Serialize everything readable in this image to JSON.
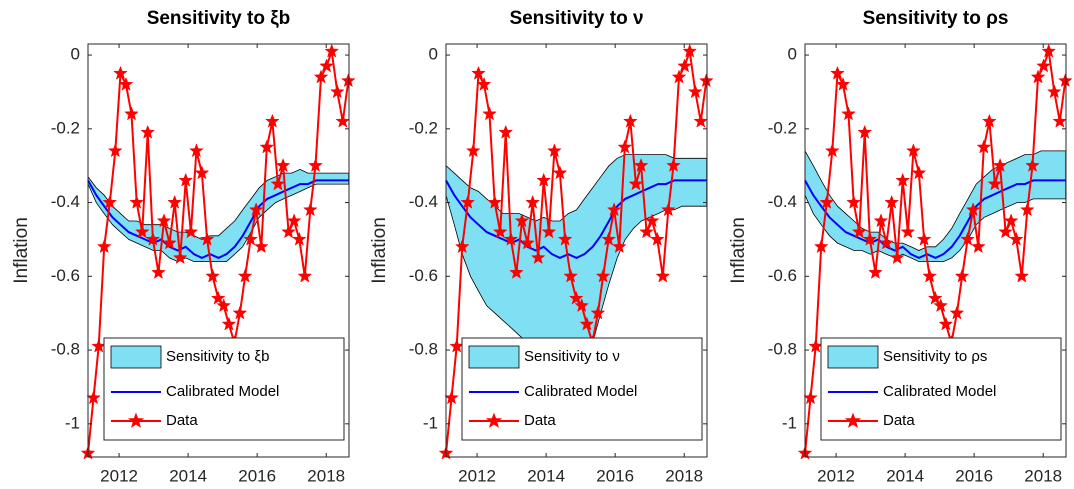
{
  "chart_data": [
    {
      "type": "line",
      "title": "Sensitivity to ξb",
      "ylabel": "Inflation",
      "xlim": [
        2011.1,
        2018.66
      ],
      "ylim": [
        -1.09,
        0.03
      ],
      "xticks": [
        2012,
        2014,
        2016,
        2018
      ],
      "yticks": [
        -1,
        -0.8,
        -0.6,
        -0.4,
        -0.2,
        0
      ],
      "band": {
        "name": "Sensitivity to ξb",
        "color": "#7fe0f4",
        "x": [
          2011.1,
          2011.34,
          2011.57,
          2011.81,
          2012.04,
          2012.28,
          2012.52,
          2012.75,
          2012.99,
          2013.22,
          2013.46,
          2013.7,
          2013.93,
          2014.17,
          2014.4,
          2014.64,
          2014.88,
          2015.11,
          2015.35,
          2015.58,
          2015.82,
          2016.06,
          2016.29,
          2016.53,
          2016.76,
          2017.0,
          2017.24,
          2017.47,
          2017.71,
          2017.94,
          2018.18,
          2018.42,
          2018.65
        ],
        "lower": [
          -0.35,
          -0.4,
          -0.43,
          -0.46,
          -0.48,
          -0.5,
          -0.51,
          -0.52,
          -0.53,
          -0.53,
          -0.55,
          -0.56,
          -0.55,
          -0.56,
          -0.56,
          -0.56,
          -0.56,
          -0.56,
          -0.54,
          -0.52,
          -0.48,
          -0.44,
          -0.42,
          -0.4,
          -0.39,
          -0.38,
          -0.37,
          -0.36,
          -0.35,
          -0.35,
          -0.35,
          -0.35,
          -0.35
        ],
        "upper": [
          -0.33,
          -0.36,
          -0.38,
          -0.41,
          -0.43,
          -0.45,
          -0.45,
          -0.46,
          -0.46,
          -0.46,
          -0.47,
          -0.48,
          -0.48,
          -0.49,
          -0.5,
          -0.49,
          -0.49,
          -0.47,
          -0.45,
          -0.42,
          -0.39,
          -0.36,
          -0.34,
          -0.33,
          -0.32,
          -0.32,
          -0.31,
          -0.32,
          -0.32,
          -0.32,
          -0.32,
          -0.32,
          -0.32
        ]
      },
      "series": [
        {
          "name": "Calibrated Model",
          "color": "#0000ff",
          "x": [
            2011.1,
            2011.34,
            2011.57,
            2011.81,
            2012.04,
            2012.28,
            2012.52,
            2012.75,
            2012.99,
            2013.22,
            2013.46,
            2013.7,
            2013.93,
            2014.17,
            2014.4,
            2014.64,
            2014.88,
            2015.11,
            2015.35,
            2015.58,
            2015.82,
            2016.06,
            2016.29,
            2016.53,
            2016.76,
            2017.0,
            2017.24,
            2017.47,
            2017.71,
            2017.94,
            2018.18,
            2018.42,
            2018.65
          ],
          "values": [
            -0.34,
            -0.38,
            -0.41,
            -0.44,
            -0.46,
            -0.48,
            -0.49,
            -0.5,
            -0.51,
            -0.5,
            -0.52,
            -0.53,
            -0.52,
            -0.54,
            -0.55,
            -0.54,
            -0.55,
            -0.54,
            -0.52,
            -0.49,
            -0.45,
            -0.41,
            -0.39,
            -0.38,
            -0.37,
            -0.36,
            -0.35,
            -0.35,
            -0.34,
            -0.34,
            -0.34,
            -0.34,
            -0.34
          ]
        },
        {
          "name": "Data",
          "color": "#ff0000",
          "x": [
            2011.1,
            2011.26,
            2011.41,
            2011.57,
            2011.73,
            2011.89,
            2012.04,
            2012.2,
            2012.36,
            2012.51,
            2012.67,
            2012.83,
            2012.98,
            2013.14,
            2013.3,
            2013.46,
            2013.61,
            2013.77,
            2013.93,
            2014.08,
            2014.24,
            2014.4,
            2014.55,
            2014.71,
            2014.87,
            2015.03,
            2015.18,
            2015.34,
            2015.5,
            2015.65,
            2015.81,
            2015.97,
            2016.12,
            2016.28,
            2016.44,
            2016.6,
            2016.75,
            2016.91,
            2017.07,
            2017.22,
            2017.38,
            2017.54,
            2017.69,
            2017.85,
            2018.01,
            2018.16,
            2018.32,
            2018.48,
            2018.64
          ],
          "values": [
            -1.08,
            -0.93,
            -0.79,
            -0.52,
            -0.4,
            -0.26,
            -0.05,
            -0.08,
            -0.16,
            -0.4,
            -0.48,
            -0.21,
            -0.5,
            -0.59,
            -0.45,
            -0.51,
            -0.4,
            -0.55,
            -0.34,
            -0.48,
            -0.26,
            -0.32,
            -0.5,
            -0.6,
            -0.66,
            -0.68,
            -0.73,
            -0.78,
            -0.7,
            -0.6,
            -0.5,
            -0.42,
            -0.52,
            -0.25,
            -0.18,
            -0.35,
            -0.3,
            -0.48,
            -0.45,
            -0.5,
            -0.6,
            -0.42,
            -0.3,
            -0.06,
            -0.03,
            0.01,
            -0.1,
            -0.18,
            -0.07
          ]
        }
      ]
    },
    {
      "type": "line",
      "title": "Sensitivity to ν",
      "ylabel": "Inflation",
      "xlim": [
        2011.1,
        2018.66
      ],
      "ylim": [
        -1.09,
        0.03
      ],
      "xticks": [
        2012,
        2014,
        2016,
        2018
      ],
      "yticks": [
        -1,
        -0.8,
        -0.6,
        -0.4,
        -0.2,
        0
      ],
      "band": {
        "name": "Sensitivity to ν",
        "color": "#7fe0f4",
        "x": [
          2011.1,
          2011.34,
          2011.57,
          2011.81,
          2012.04,
          2012.28,
          2012.52,
          2012.75,
          2012.99,
          2013.22,
          2013.46,
          2013.7,
          2013.93,
          2014.17,
          2014.4,
          2014.64,
          2014.88,
          2015.11,
          2015.35,
          2015.58,
          2015.82,
          2016.06,
          2016.29,
          2016.53,
          2016.76,
          2017.0,
          2017.24,
          2017.47,
          2017.71,
          2017.94,
          2018.18,
          2018.42,
          2018.65
        ],
        "lower": [
          -0.38,
          -0.46,
          -0.54,
          -0.6,
          -0.64,
          -0.68,
          -0.7,
          -0.72,
          -0.74,
          -0.76,
          -0.78,
          -0.8,
          -0.81,
          -0.82,
          -0.83,
          -0.84,
          -0.84,
          -0.82,
          -0.78,
          -0.7,
          -0.62,
          -0.55,
          -0.5,
          -0.47,
          -0.45,
          -0.44,
          -0.43,
          -0.42,
          -0.42,
          -0.41,
          -0.41,
          -0.41,
          -0.41
        ],
        "upper": [
          -0.3,
          -0.32,
          -0.34,
          -0.36,
          -0.37,
          -0.39,
          -0.41,
          -0.43,
          -0.43,
          -0.43,
          -0.44,
          -0.45,
          -0.44,
          -0.45,
          -0.45,
          -0.43,
          -0.42,
          -0.39,
          -0.36,
          -0.33,
          -0.3,
          -0.28,
          -0.27,
          -0.27,
          -0.27,
          -0.27,
          -0.27,
          -0.27,
          -0.28,
          -0.28,
          -0.28,
          -0.28,
          -0.28
        ]
      },
      "series": [
        {
          "name": "Calibrated Model",
          "color": "#0000ff",
          "x": [
            2011.1,
            2011.34,
            2011.57,
            2011.81,
            2012.04,
            2012.28,
            2012.52,
            2012.75,
            2012.99,
            2013.22,
            2013.46,
            2013.7,
            2013.93,
            2014.17,
            2014.4,
            2014.64,
            2014.88,
            2015.11,
            2015.35,
            2015.58,
            2015.82,
            2016.06,
            2016.29,
            2016.53,
            2016.76,
            2017.0,
            2017.24,
            2017.47,
            2017.71,
            2017.94,
            2018.18,
            2018.42,
            2018.65
          ],
          "values": [
            -0.34,
            -0.38,
            -0.41,
            -0.44,
            -0.46,
            -0.48,
            -0.49,
            -0.5,
            -0.51,
            -0.5,
            -0.52,
            -0.53,
            -0.52,
            -0.54,
            -0.55,
            -0.54,
            -0.55,
            -0.54,
            -0.52,
            -0.49,
            -0.45,
            -0.41,
            -0.39,
            -0.38,
            -0.37,
            -0.36,
            -0.35,
            -0.35,
            -0.34,
            -0.34,
            -0.34,
            -0.34,
            -0.34
          ]
        },
        {
          "name": "Data",
          "color": "#ff0000",
          "x": [
            2011.1,
            2011.26,
            2011.41,
            2011.57,
            2011.73,
            2011.89,
            2012.04,
            2012.2,
            2012.36,
            2012.51,
            2012.67,
            2012.83,
            2012.98,
            2013.14,
            2013.3,
            2013.46,
            2013.61,
            2013.77,
            2013.93,
            2014.08,
            2014.24,
            2014.4,
            2014.55,
            2014.71,
            2014.87,
            2015.03,
            2015.18,
            2015.34,
            2015.5,
            2015.65,
            2015.81,
            2015.97,
            2016.12,
            2016.28,
            2016.44,
            2016.6,
            2016.75,
            2016.91,
            2017.07,
            2017.22,
            2017.38,
            2017.54,
            2017.69,
            2017.85,
            2018.01,
            2018.16,
            2018.32,
            2018.48,
            2018.64
          ],
          "values": [
            -1.08,
            -0.93,
            -0.79,
            -0.52,
            -0.4,
            -0.26,
            -0.05,
            -0.08,
            -0.16,
            -0.4,
            -0.48,
            -0.21,
            -0.5,
            -0.59,
            -0.45,
            -0.51,
            -0.4,
            -0.55,
            -0.34,
            -0.48,
            -0.26,
            -0.32,
            -0.5,
            -0.6,
            -0.66,
            -0.68,
            -0.73,
            -0.78,
            -0.7,
            -0.6,
            -0.5,
            -0.42,
            -0.52,
            -0.25,
            -0.18,
            -0.35,
            -0.3,
            -0.48,
            -0.45,
            -0.5,
            -0.6,
            -0.42,
            -0.3,
            -0.06,
            -0.03,
            0.01,
            -0.1,
            -0.18,
            -0.07
          ]
        }
      ]
    },
    {
      "type": "line",
      "title": "Sensitivity to ρs",
      "ylabel": "Inflation",
      "xlim": [
        2011.1,
        2018.66
      ],
      "ylim": [
        -1.09,
        0.03
      ],
      "xticks": [
        2012,
        2014,
        2016,
        2018
      ],
      "yticks": [
        -1,
        -0.8,
        -0.6,
        -0.4,
        -0.2,
        0
      ],
      "band": {
        "name": "Sensitivity to ρs",
        "color": "#7fe0f4",
        "x": [
          2011.1,
          2011.34,
          2011.57,
          2011.81,
          2012.04,
          2012.28,
          2012.52,
          2012.75,
          2012.99,
          2013.22,
          2013.46,
          2013.7,
          2013.93,
          2014.17,
          2014.4,
          2014.64,
          2014.88,
          2015.11,
          2015.35,
          2015.58,
          2015.82,
          2016.06,
          2016.29,
          2016.53,
          2016.76,
          2017.0,
          2017.24,
          2017.47,
          2017.71,
          2017.94,
          2018.18,
          2018.42,
          2018.65
        ],
        "lower": [
          -0.38,
          -0.43,
          -0.46,
          -0.49,
          -0.51,
          -0.52,
          -0.53,
          -0.53,
          -0.54,
          -0.53,
          -0.54,
          -0.55,
          -0.54,
          -0.55,
          -0.56,
          -0.56,
          -0.56,
          -0.56,
          -0.55,
          -0.53,
          -0.5,
          -0.46,
          -0.44,
          -0.43,
          -0.42,
          -0.41,
          -0.4,
          -0.4,
          -0.39,
          -0.39,
          -0.39,
          -0.39,
          -0.39
        ],
        "upper": [
          -0.26,
          -0.3,
          -0.34,
          -0.38,
          -0.41,
          -0.43,
          -0.45,
          -0.47,
          -0.48,
          -0.48,
          -0.5,
          -0.51,
          -0.51,
          -0.52,
          -0.53,
          -0.52,
          -0.52,
          -0.5,
          -0.47,
          -0.43,
          -0.39,
          -0.35,
          -0.33,
          -0.31,
          -0.3,
          -0.29,
          -0.28,
          -0.27,
          -0.27,
          -0.26,
          -0.26,
          -0.26,
          -0.26
        ]
      },
      "series": [
        {
          "name": "Calibrated Model",
          "color": "#0000ff",
          "x": [
            2011.1,
            2011.34,
            2011.57,
            2011.81,
            2012.04,
            2012.28,
            2012.52,
            2012.75,
            2012.99,
            2013.22,
            2013.46,
            2013.7,
            2013.93,
            2014.17,
            2014.4,
            2014.64,
            2014.88,
            2015.11,
            2015.35,
            2015.58,
            2015.82,
            2016.06,
            2016.29,
            2016.53,
            2016.76,
            2017.0,
            2017.24,
            2017.47,
            2017.71,
            2017.94,
            2018.18,
            2018.42,
            2018.65
          ],
          "values": [
            -0.34,
            -0.38,
            -0.41,
            -0.44,
            -0.46,
            -0.48,
            -0.49,
            -0.5,
            -0.51,
            -0.5,
            -0.52,
            -0.53,
            -0.52,
            -0.54,
            -0.55,
            -0.54,
            -0.55,
            -0.54,
            -0.52,
            -0.49,
            -0.45,
            -0.41,
            -0.39,
            -0.38,
            -0.37,
            -0.36,
            -0.35,
            -0.35,
            -0.34,
            -0.34,
            -0.34,
            -0.34,
            -0.34
          ]
        },
        {
          "name": "Data",
          "color": "#ff0000",
          "x": [
            2011.1,
            2011.26,
            2011.41,
            2011.57,
            2011.73,
            2011.89,
            2012.04,
            2012.2,
            2012.36,
            2012.51,
            2012.67,
            2012.83,
            2012.98,
            2013.14,
            2013.3,
            2013.46,
            2013.61,
            2013.77,
            2013.93,
            2014.08,
            2014.24,
            2014.4,
            2014.55,
            2014.71,
            2014.87,
            2015.03,
            2015.18,
            2015.34,
            2015.5,
            2015.65,
            2015.81,
            2015.97,
            2016.12,
            2016.28,
            2016.44,
            2016.6,
            2016.75,
            2016.91,
            2017.07,
            2017.22,
            2017.38,
            2017.54,
            2017.69,
            2017.85,
            2018.01,
            2018.16,
            2018.32,
            2018.48,
            2018.64
          ],
          "values": [
            -1.08,
            -0.93,
            -0.79,
            -0.52,
            -0.4,
            -0.26,
            -0.05,
            -0.08,
            -0.16,
            -0.4,
            -0.48,
            -0.21,
            -0.5,
            -0.59,
            -0.45,
            -0.51,
            -0.4,
            -0.55,
            -0.34,
            -0.48,
            -0.26,
            -0.32,
            -0.5,
            -0.6,
            -0.66,
            -0.68,
            -0.73,
            -0.78,
            -0.7,
            -0.6,
            -0.5,
            -0.42,
            -0.52,
            -0.25,
            -0.18,
            -0.35,
            -0.3,
            -0.48,
            -0.45,
            -0.5,
            -0.6,
            -0.42,
            -0.3,
            -0.06,
            -0.03,
            0.01,
            -0.1,
            -0.18,
            -0.07
          ]
        }
      ]
    }
  ]
}
